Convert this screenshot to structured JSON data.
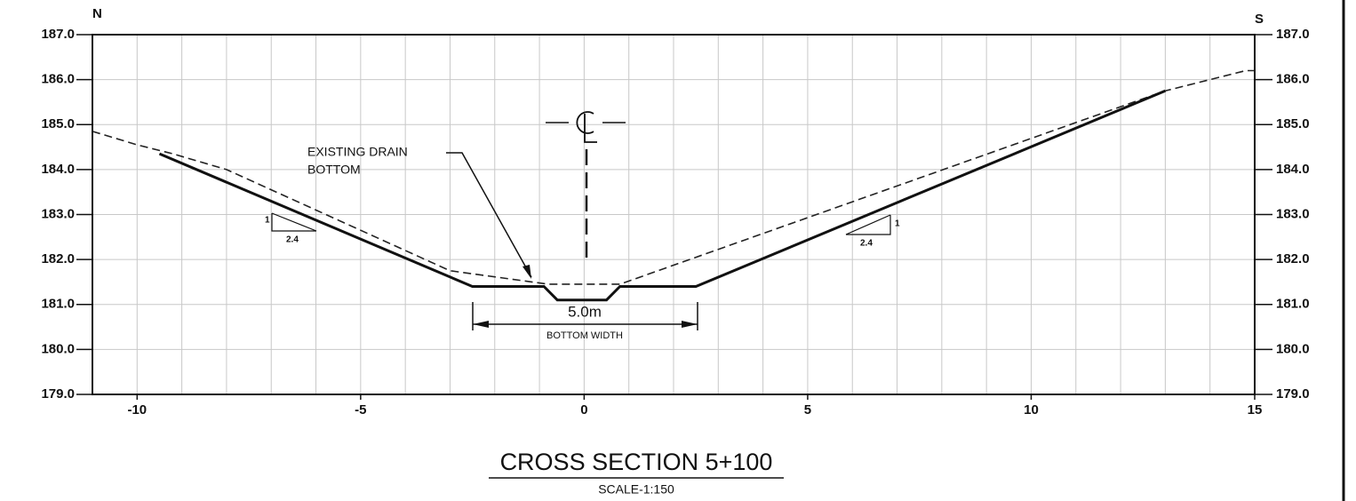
{
  "chart_data": {
    "type": "line",
    "title": "CROSS SECTION 5+100",
    "subtitle": "SCALE-1:150",
    "left_label": "N",
    "right_label": "S",
    "annotation_drain_1": "EXISTING DRAIN",
    "annotation_drain_2": "BOTTOM",
    "dimension_value": "5.0m",
    "dimension_label": "BOTTOM WIDTH",
    "slope_left_rise": "1",
    "slope_left_run": "2.4",
    "slope_right_rise": "1",
    "slope_right_run": "2.4",
    "xlim": [
      -11,
      15
    ],
    "xticks": [
      -10,
      -5,
      0,
      5,
      10,
      15
    ],
    "xgrid": [
      -10,
      -9,
      -8,
      -7,
      -6,
      -5,
      -4,
      -3,
      -2,
      -1,
      0,
      1,
      2,
      3,
      4,
      5,
      6,
      7,
      8,
      9,
      10,
      11,
      12,
      13,
      14
    ],
    "ylim": [
      179,
      187
    ],
    "yticks": [
      {
        "value": 179,
        "label": "179.0"
      },
      {
        "value": 180,
        "label": "180.0"
      },
      {
        "value": 181,
        "label": "181.0"
      },
      {
        "value": 182,
        "label": "182.0"
      },
      {
        "value": 183,
        "label": "183.0"
      },
      {
        "value": 184,
        "label": "184.0"
      },
      {
        "value": 185,
        "label": "185.0"
      },
      {
        "value": 186,
        "label": "186.0"
      },
      {
        "value": 187,
        "label": "187.0"
      }
    ],
    "y2lim": [
      179,
      187
    ],
    "y2ticks": [
      {
        "value": 179,
        "label": "179.0"
      },
      {
        "value": 180,
        "label": "180.0"
      },
      {
        "value": 181,
        "label": "181.0"
      },
      {
        "value": 182,
        "label": "182.0"
      },
      {
        "value": 183,
        "label": "183.0"
      },
      {
        "value": 184,
        "label": "184.0"
      },
      {
        "value": 185,
        "label": "185.0"
      },
      {
        "value": 186,
        "label": "186.0"
      },
      {
        "value": 187,
        "label": "187.0"
      }
    ],
    "grid": true,
    "series": [
      {
        "color": "#222222",
        "dashed": true,
        "x": [
          -11,
          -10,
          -9.2,
          -8,
          -3,
          -0.8,
          0.8,
          13,
          14,
          14.8,
          15
        ],
        "values": [
          184.85,
          184.55,
          184.35,
          184.0,
          181.75,
          181.45,
          181.45,
          185.75,
          186.0,
          186.2,
          186.2
        ]
      },
      {
        "color": "#111111",
        "dashed": false,
        "x": [
          -9.5,
          -2.5,
          -0.9,
          -0.6,
          0.5,
          0.8,
          2.5,
          13
        ],
        "values": [
          184.35,
          181.4,
          181.4,
          181.1,
          181.1,
          181.4,
          181.4,
          185.75
        ]
      }
    ]
  }
}
